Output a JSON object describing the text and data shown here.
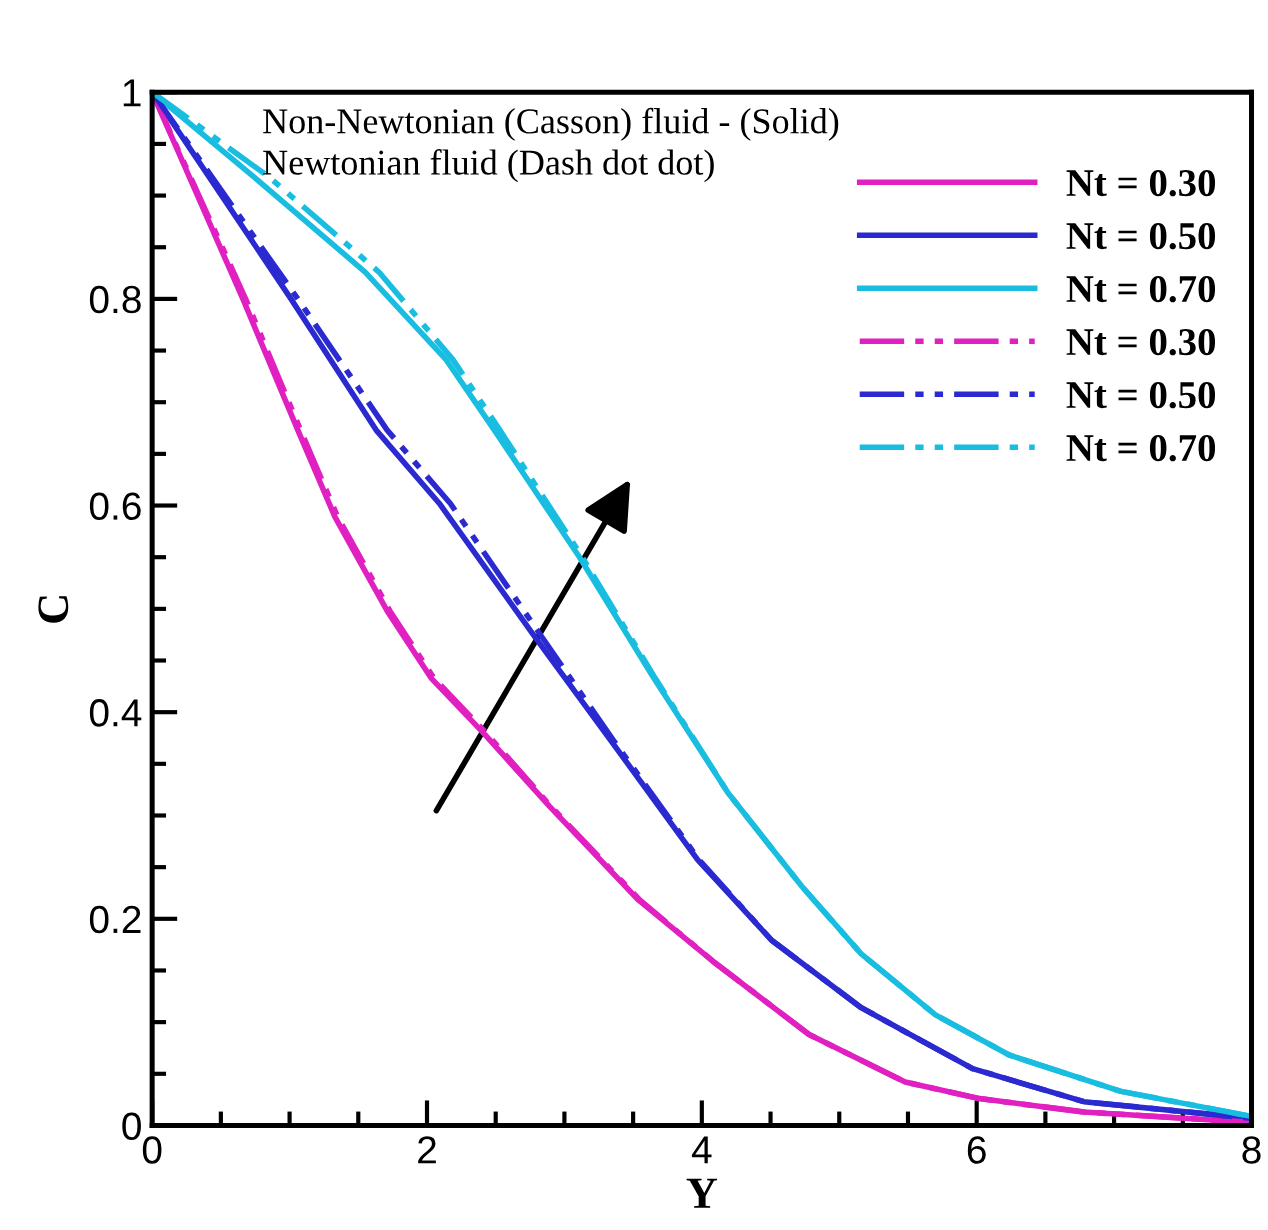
{
  "chart_data": {
    "type": "line",
    "xlabel": "Y",
    "ylabel": "C",
    "annotations": [
      "Non-Newtonian (Casson) fluid - (Solid)",
      "Newtonian fluid (Dash dot dot)"
    ],
    "xlim": [
      0,
      8
    ],
    "ylim": [
      0,
      1
    ],
    "xticks": [
      0,
      {
        "value": 0.5,
        "label": null
      },
      {
        "value": 1,
        "label": null
      },
      {
        "value": 1.5,
        "label": null
      },
      2,
      {
        "value": 2.5,
        "label": null
      },
      {
        "value": 3,
        "label": null
      },
      {
        "value": 3.5,
        "label": null
      },
      4,
      {
        "value": 4.5,
        "label": null
      },
      {
        "value": 5,
        "label": null
      },
      {
        "value": 5.5,
        "label": null
      },
      6,
      {
        "value": 6.5,
        "label": null
      },
      {
        "value": 7,
        "label": null
      },
      {
        "value": 7.5,
        "label": null
      },
      8
    ],
    "yticks": [
      0,
      {
        "value": 0.05,
        "label": null
      },
      {
        "value": 0.1,
        "label": null
      },
      {
        "value": 0.15,
        "label": null
      },
      0.2,
      {
        "value": 0.25,
        "label": null
      },
      {
        "value": 0.3,
        "label": null
      },
      {
        "value": 0.35,
        "label": null
      },
      0.4,
      {
        "value": 0.45,
        "label": null
      },
      {
        "value": 0.5,
        "label": null
      },
      {
        "value": 0.55,
        "label": null
      },
      0.6,
      {
        "value": 0.65,
        "label": null
      },
      {
        "value": 0.7,
        "label": null
      },
      {
        "value": 0.75,
        "label": null
      },
      0.8,
      {
        "value": 0.85,
        "label": null
      },
      {
        "value": 0.9,
        "label": null
      },
      {
        "value": 0.95,
        "label": null
      },
      1
    ],
    "grid": false,
    "legend": "top right",
    "marker": "none",
    "series": [
      {
        "name": "Nt = 0.30",
        "color": "#e020c0",
        "line_style": "solid",
        "x": [
          0,
          0.66,
          1.06,
          1.33,
          1.71,
          2.03,
          2.41,
          2.89,
          3.54,
          4.08,
          4.78,
          5.48,
          6.02,
          6.78,
          7.99
        ],
        "values": [
          1,
          0.8,
          0.673,
          0.589,
          0.498,
          0.433,
          0.38,
          0.309,
          0.218,
          0.159,
          0.088,
          0.042,
          0.026,
          0.013,
          0.003
        ]
      },
      {
        "name": "Nt = 0.50",
        "color": "#2a2ad0",
        "line_style": "solid",
        "x": [
          0,
          1.01,
          1.63,
          2.09,
          2.79,
          3.33,
          3.97,
          4.51,
          5.16,
          5.97,
          6.78,
          7.99
        ],
        "values": [
          1,
          0.8,
          0.673,
          0.602,
          0.472,
          0.374,
          0.257,
          0.179,
          0.114,
          0.055,
          0.023,
          0.007
        ]
      },
      {
        "name": "Nt = 0.70",
        "color": "#19bde0",
        "line_style": "solid",
        "x": [
          0,
          0.74,
          1.55,
          2.14,
          2.49,
          3.11,
          3.65,
          4.19,
          4.73,
          5.16,
          5.7,
          6.24,
          7.05,
          7.99
        ],
        "values": [
          1,
          0.918,
          0.826,
          0.741,
          0.673,
          0.55,
          0.433,
          0.322,
          0.231,
          0.166,
          0.107,
          0.068,
          0.033,
          0.009
        ]
      },
      {
        "name": "Nt = 0.30",
        "color": "#e020c0",
        "line_style": "dashdotdot",
        "x": [
          0,
          0.68,
          1.08,
          1.35,
          1.73,
          2.05,
          2.43,
          2.9,
          3.55,
          4.08,
          4.78,
          5.48,
          6.02,
          6.78,
          7.99
        ],
        "values": [
          1,
          0.8,
          0.673,
          0.589,
          0.498,
          0.433,
          0.38,
          0.309,
          0.218,
          0.159,
          0.088,
          0.042,
          0.026,
          0.013,
          0.003
        ]
      },
      {
        "name": "Nt = 0.50",
        "color": "#2a2ad0",
        "line_style": "dashdotdot",
        "x": [
          0,
          1.06,
          1.71,
          2.17,
          2.84,
          3.35,
          3.98,
          4.51,
          5.16,
          5.97,
          6.78,
          7.99
        ],
        "values": [
          1,
          0.8,
          0.673,
          0.602,
          0.472,
          0.374,
          0.257,
          0.179,
          0.114,
          0.055,
          0.023,
          0.007
        ]
      },
      {
        "name": "Nt = 0.70",
        "color": "#19bde0",
        "line_style": "dashdotdot",
        "x": [
          0,
          0.85,
          1.65,
          2.19,
          2.53,
          3.13,
          3.66,
          4.19,
          4.73,
          5.16,
          5.7,
          6.24,
          7.05,
          7.99
        ],
        "values": [
          1,
          0.918,
          0.826,
          0.741,
          0.673,
          0.55,
          0.433,
          0.322,
          0.231,
          0.166,
          0.107,
          0.068,
          0.033,
          0.009
        ]
      }
    ]
  }
}
